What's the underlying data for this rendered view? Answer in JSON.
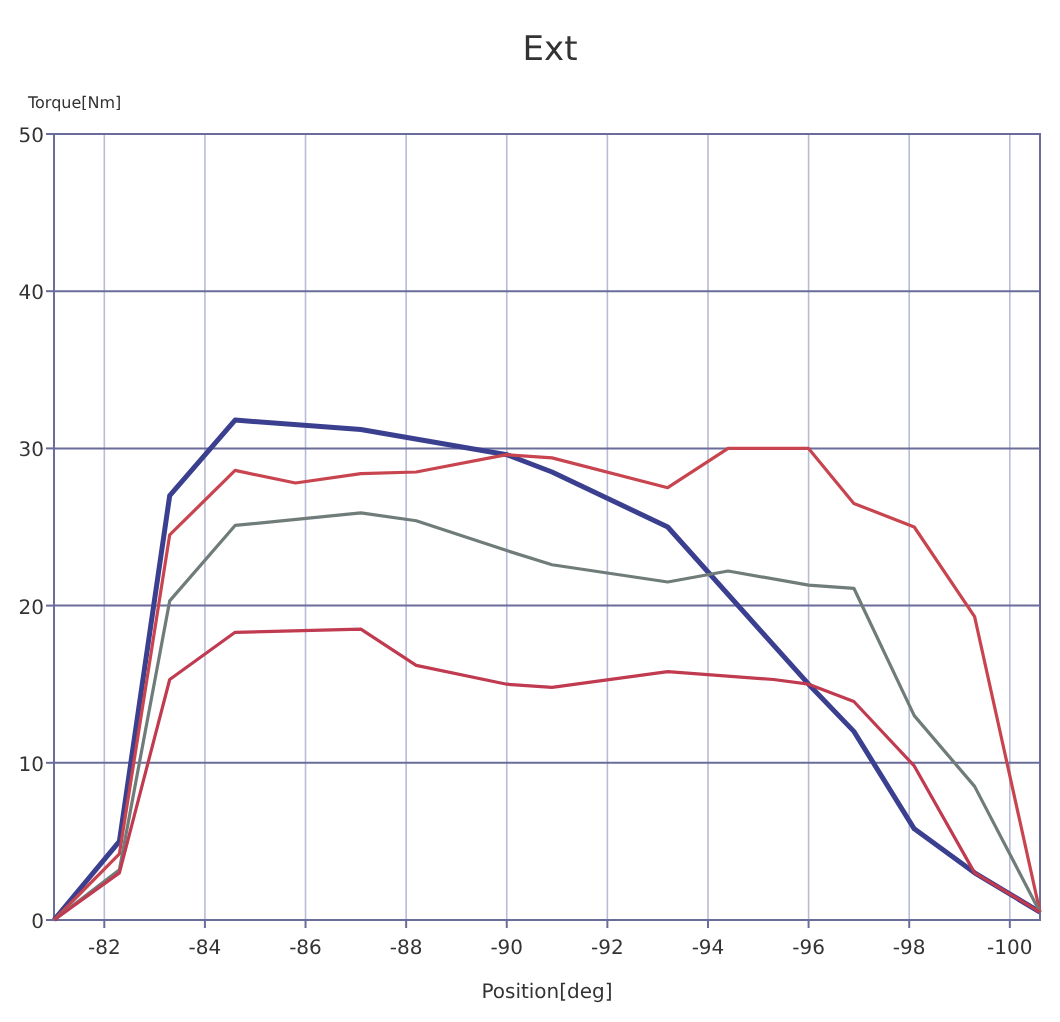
{
  "chart_data": {
    "type": "line",
    "title": "Ext",
    "xlabel": "Position[deg]",
    "ylabel": "Torque[Nm]",
    "xlim": [
      -81,
      -100.6
    ],
    "xticks": [
      {
        "value": -82,
        "label": "-82"
      },
      {
        "value": -84,
        "label": "-84"
      },
      {
        "value": -86,
        "label": "-86"
      },
      {
        "value": -88,
        "label": "-88"
      },
      {
        "value": -90,
        "label": "-90"
      },
      {
        "value": -92,
        "label": "-92"
      },
      {
        "value": -94,
        "label": "-94"
      },
      {
        "value": -96,
        "label": "-96"
      },
      {
        "value": -98,
        "label": "-98"
      },
      {
        "value": -100,
        "label": "-100"
      }
    ],
    "ylim": [
      0,
      50
    ],
    "yticks": [
      0,
      10,
      20,
      30,
      40,
      50
    ],
    "grid": true,
    "marker": "none",
    "line_style": "solid",
    "series": [
      {
        "color": "#3a3f8f",
        "x": [
          -81,
          -82.3,
          -83.3,
          -84.6,
          -87.1,
          -90,
          -90.9,
          -93.2,
          -96,
          -96.9,
          -98.1,
          -99.3,
          -100.6
        ],
        "values": [
          0,
          5,
          27,
          31.8,
          31.2,
          29.6,
          28.5,
          25,
          15,
          12,
          5.8,
          3,
          0.5
        ]
      },
      {
        "color": "#c8444f",
        "x": [
          -81,
          -82.3,
          -83.3,
          -84.6,
          -85.8,
          -87.1,
          -88.2,
          -90,
          -90.9,
          -93.2,
          -94.4,
          -96,
          -96.9,
          -98.1,
          -99.3,
          -100.6
        ],
        "values": [
          0,
          4.2,
          24.5,
          28.6,
          27.8,
          28.4,
          28.5,
          29.6,
          29.4,
          27.5,
          30,
          30,
          26.5,
          25,
          19.3,
          0.5
        ]
      },
      {
        "color": "#6f7c7a",
        "x": [
          -81,
          -82.3,
          -83.3,
          -84.6,
          -87.1,
          -88.2,
          -90,
          -90.9,
          -93.2,
          -94.4,
          -96,
          -96.9,
          -98.1,
          -99.3,
          -100.6
        ],
        "values": [
          0,
          3.2,
          20.3,
          25.1,
          25.9,
          25.4,
          23.5,
          22.6,
          21.5,
          22.2,
          21.3,
          21.1,
          13,
          8.5,
          0.5
        ]
      },
      {
        "color": "#c03a50",
        "x": [
          -81,
          -82.3,
          -83.3,
          -84.6,
          -87.1,
          -88.2,
          -90,
          -90.9,
          -93.2,
          -95.3,
          -96,
          -96.9,
          -98.1,
          -99.3,
          -100.6
        ],
        "values": [
          0,
          3,
          15.3,
          18.3,
          18.5,
          16.2,
          15,
          14.8,
          15.8,
          15.3,
          15,
          13.9,
          9.8,
          3,
          0.5
        ]
      }
    ]
  }
}
